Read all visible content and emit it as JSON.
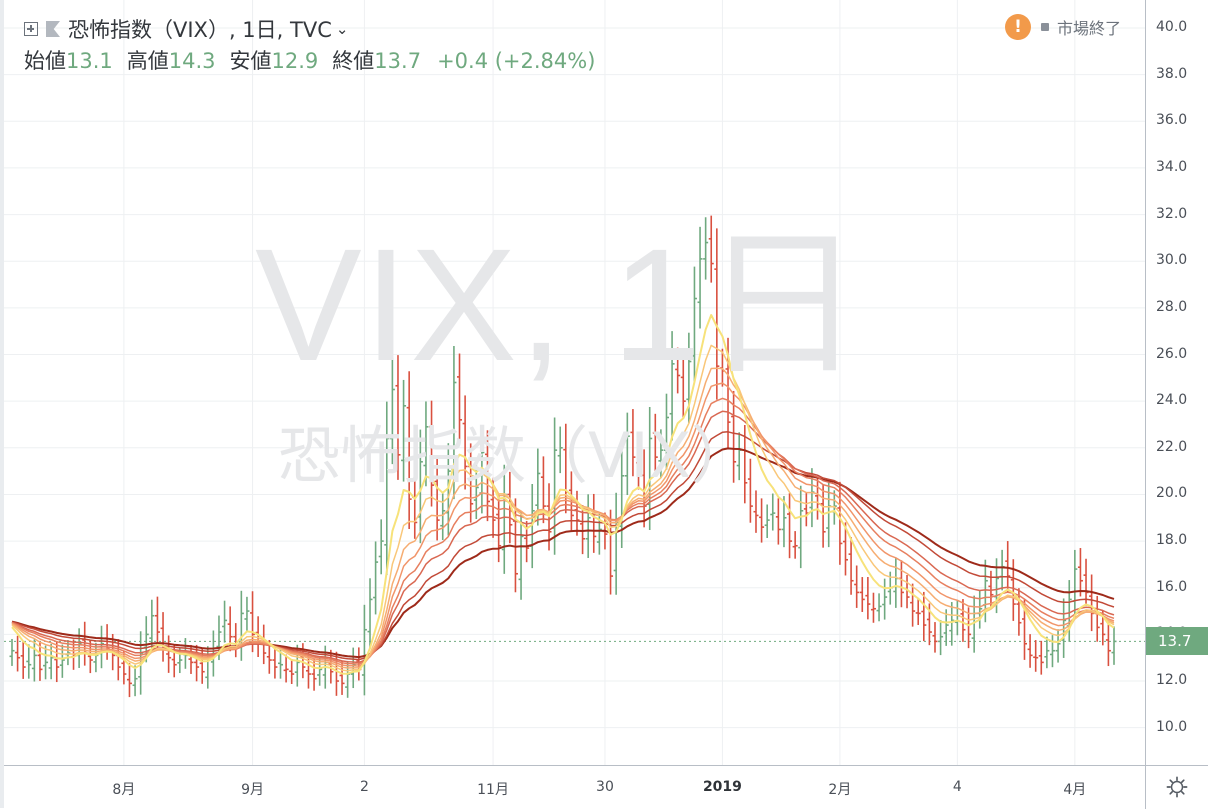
{
  "symbol_title": "恐怖指数（VIX）, 1日, TVC",
  "ohlc": {
    "open_label": "始値",
    "open": "13.1",
    "high_label": "高値",
    "high": "14.3",
    "low_label": "安値",
    "low": "12.9",
    "close_label": "終値",
    "close": "13.7",
    "change": "+0.4 (+2.84%)"
  },
  "market_status": "市場終了",
  "watermark": {
    "symbol": "VIX, 1日",
    "name": "恐怖指数（VIX）"
  },
  "last_price_label": "13.7",
  "colors": {
    "up": "#6fa97f",
    "down": "#d9503f",
    "grid": "#eef0f2",
    "ribbon_fast": "#f7e27a",
    "ribbon_slow": "#9e2a1a",
    "warning": "#f29a4a"
  },
  "icons": [
    "add-symbol-icon",
    "flag-icon",
    "chevron-down-icon",
    "warning-icon",
    "gear-icon"
  ],
  "chart_data": {
    "type": "candlestick-ohlc-bars",
    "ylim": [
      8.4,
      41.2
    ],
    "yticks": [
      10,
      12,
      14,
      16,
      18,
      20,
      22,
      24,
      26,
      28,
      30,
      32,
      34,
      36,
      38,
      40
    ],
    "ytick_labels": [
      "10.0",
      "12.0",
      "14.0",
      "16.0",
      "18.0",
      "20.0",
      "22.0",
      "24.0",
      "26.0",
      "28.0",
      "30.0",
      "32.0",
      "34.0",
      "36.0",
      "38.0",
      "40.0"
    ],
    "time_ticks": [
      {
        "label": "8月",
        "bar": 20,
        "bold": false
      },
      {
        "label": "9月",
        "bar": 43,
        "bold": false
      },
      {
        "label": "2",
        "bar": 63,
        "bold": false
      },
      {
        "label": "11月",
        "bar": 86,
        "bold": false
      },
      {
        "label": "30",
        "bar": 106,
        "bold": false
      },
      {
        "label": "2019",
        "bar": 127,
        "bold": true
      },
      {
        "label": "2月",
        "bar": 148,
        "bold": false
      },
      {
        "label": "4",
        "bar": 169,
        "bold": false
      },
      {
        "label": "4月",
        "bar": 190,
        "bold": false
      }
    ],
    "last_price": 13.7,
    "ribbon_periods": [
      8,
      12,
      16,
      20,
      25,
      30,
      40,
      50
    ],
    "close": [
      13.3,
      13.0,
      12.6,
      12.7,
      13.1,
      12.5,
      12.8,
      13.0,
      12.6,
      12.9,
      13.2,
      13.1,
      13.6,
      13.3,
      12.9,
      13.1,
      13.6,
      13.4,
      13.1,
      12.6,
      12.3,
      11.9,
      12.1,
      13.2,
      14.0,
      14.8,
      14.1,
      13.4,
      13.0,
      12.7,
      12.9,
      13.1,
      12.8,
      12.6,
      12.4,
      12.9,
      13.4,
      14.1,
      14.6,
      13.9,
      13.5,
      14.9,
      15.0,
      14.0,
      13.6,
      13.2,
      12.9,
      12.6,
      12.7,
      12.5,
      12.3,
      12.8,
      12.6,
      12.3,
      12.1,
      12.5,
      12.8,
      12.4,
      12.0,
      11.9,
      12.3,
      12.7,
      12.5,
      14.2,
      15.5,
      17.1,
      18.0,
      22.4,
      24.5,
      21.7,
      23.8,
      19.8,
      18.8,
      21.4,
      22.9,
      20.4,
      18.9,
      19.3,
      21.0,
      24.8,
      23.2,
      21.2,
      19.6,
      20.3,
      21.8,
      19.7,
      18.9,
      17.8,
      20.0,
      18.7,
      16.6,
      18.2,
      17.7,
      19.3,
      20.9,
      19.5,
      18.4,
      21.9,
      22.0,
      20.1,
      19.1,
      18.9,
      18.1,
      19.0,
      18.2,
      18.5,
      18.3,
      16.5,
      18.8,
      20.8,
      22.5,
      21.6,
      20.9,
      19.5,
      22.4,
      21.6,
      21.9,
      23.3,
      25.6,
      25.1,
      24.0,
      25.7,
      28.4,
      30.1,
      30.8,
      29.9,
      25.5,
      25.3,
      23.1,
      21.4,
      21.9,
      20.5,
      19.5,
      19.1,
      18.6,
      18.9,
      19.2,
      18.5,
      19.0,
      18.0,
      17.8,
      19.3,
      19.2,
      20.1,
      19.6,
      18.4,
      19.5,
      19.5,
      17.9,
      17.2,
      16.3,
      15.8,
      15.5,
      15.3,
      15.1,
      15.2,
      15.6,
      16.0,
      16.4,
      15.8,
      15.6,
      15.0,
      14.9,
      14.4,
      14.1,
      13.7,
      13.9,
      14.4,
      14.6,
      14.8,
      14.2,
      14.0,
      14.9,
      15.1,
      16.3,
      15.7,
      16.4,
      16.9,
      16.5,
      15.3,
      14.5,
      13.6,
      13.1,
      13.0,
      12.8,
      13.3,
      13.3,
      13.6,
      14.6,
      15.5,
      16.8,
      16.3,
      15.8,
      14.9,
      14.3,
      14.0,
      13.3,
      13.7
    ],
    "rendering_note": "OHLC bars colored green when close >= previous close, red otherwise; EMA ribbon shaded yellow (fast) to dark red (slow)"
  }
}
